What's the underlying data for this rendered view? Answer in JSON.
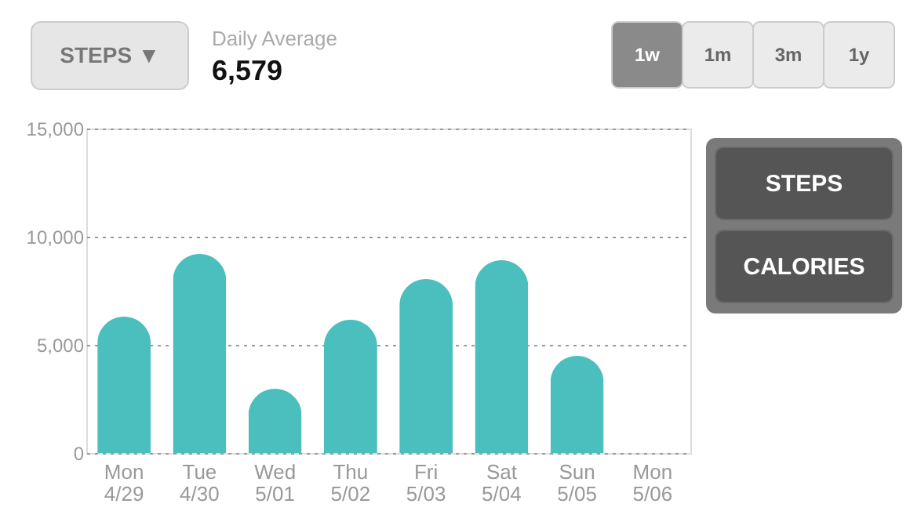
{
  "chart_data": {
    "type": "bar",
    "categories": [
      "Mon 4/29",
      "Tue 4/30",
      "Wed 5/01",
      "Thu 5/02",
      "Fri 5/03",
      "Sat 5/04",
      "Sun 5/05",
      "Mon 5/06"
    ],
    "values": [
      6300,
      9200,
      2970,
      6160,
      8040,
      8910,
      4490,
      null
    ],
    "color": "#4bbfbd",
    "ylim": [
      0,
      15000
    ],
    "yticks": [
      {
        "value": 0,
        "label": "0"
      },
      {
        "value": 5000,
        "label": "5,000"
      },
      {
        "value": 10000,
        "label": "10,000"
      },
      {
        "value": 15000,
        "label": "15,000"
      }
    ],
    "grid": "y",
    "annotations": [
      "STEPS ▼",
      "Daily Average",
      "6,579",
      "1w",
      "1m",
      "3m",
      "1y",
      "STEPS",
      "CALORIES"
    ]
  }
}
